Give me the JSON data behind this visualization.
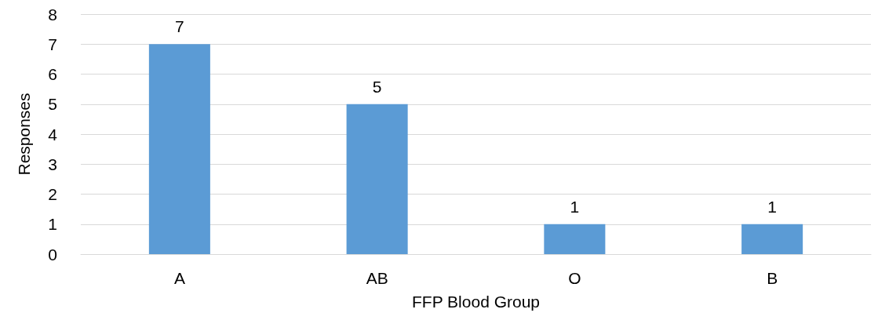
{
  "chart_data": {
    "type": "bar",
    "xlabel": "FFP Blood Group",
    "ylabel": "Responses",
    "categories": [
      "A",
      "AB",
      "O",
      "B"
    ],
    "values": [
      7,
      5,
      1,
      1
    ],
    "color": "#5b9bd5",
    "ylim": [
      0,
      8
    ],
    "yticks": [
      0,
      1,
      2,
      3,
      4,
      5,
      6,
      7,
      8
    ],
    "grid": "y",
    "data_labels": true
  }
}
